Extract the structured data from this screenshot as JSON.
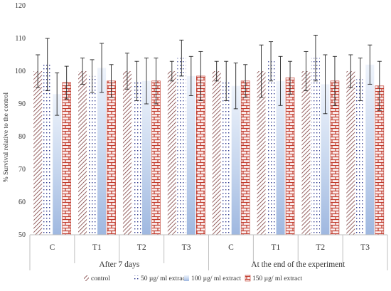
{
  "chart_data": {
    "type": "bar",
    "ylabel": "% Survival relative to the control",
    "ylim": [
      50,
      120
    ],
    "yticks": [
      50,
      60,
      70,
      80,
      90,
      100,
      110,
      120
    ],
    "grid": false,
    "legend_position": "bottom",
    "groups": [
      {
        "label": "After  7 days",
        "categories": [
          "C",
          "T1",
          "T2",
          "T3"
        ]
      },
      {
        "label": "At the end of the experiment",
        "categories": [
          "C",
          "T1",
          "T2",
          "T3"
        ]
      }
    ],
    "series": [
      {
        "name": "control",
        "color": "#7b3b3b",
        "pattern": "diagonal-hatch",
        "values": [
          100,
          100,
          100,
          100,
          100,
          100,
          100,
          100
        ],
        "errors": [
          5,
          4,
          5.5,
          3,
          3,
          8,
          6,
          5
        ]
      },
      {
        "name": "50 µg/ ml extract",
        "color": "#2f3a8f",
        "pattern": "dots",
        "values": [
          102,
          98.5,
          97,
          104,
          97,
          103,
          104,
          97.5
        ],
        "errors": [
          8,
          5,
          6,
          5.5,
          6,
          6,
          7,
          6.5
        ]
      },
      {
        "name": "100 µg/ ml extract",
        "color": "#b3c9e8",
        "pattern": "gradient",
        "values": [
          93,
          101,
          97,
          98.5,
          95.5,
          97,
          96,
          102
        ],
        "errors": [
          6.5,
          7.5,
          7,
          6,
          7,
          7.5,
          9,
          6
        ]
      },
      {
        "name": "150 µg/ ml extract",
        "color": "#c0392b",
        "pattern": "brick",
        "values": [
          96.5,
          97,
          97,
          98.5,
          97,
          98,
          97,
          95.5
        ],
        "errors": [
          5,
          5,
          7,
          7.5,
          5,
          5,
          7.5,
          7.5
        ]
      }
    ]
  }
}
